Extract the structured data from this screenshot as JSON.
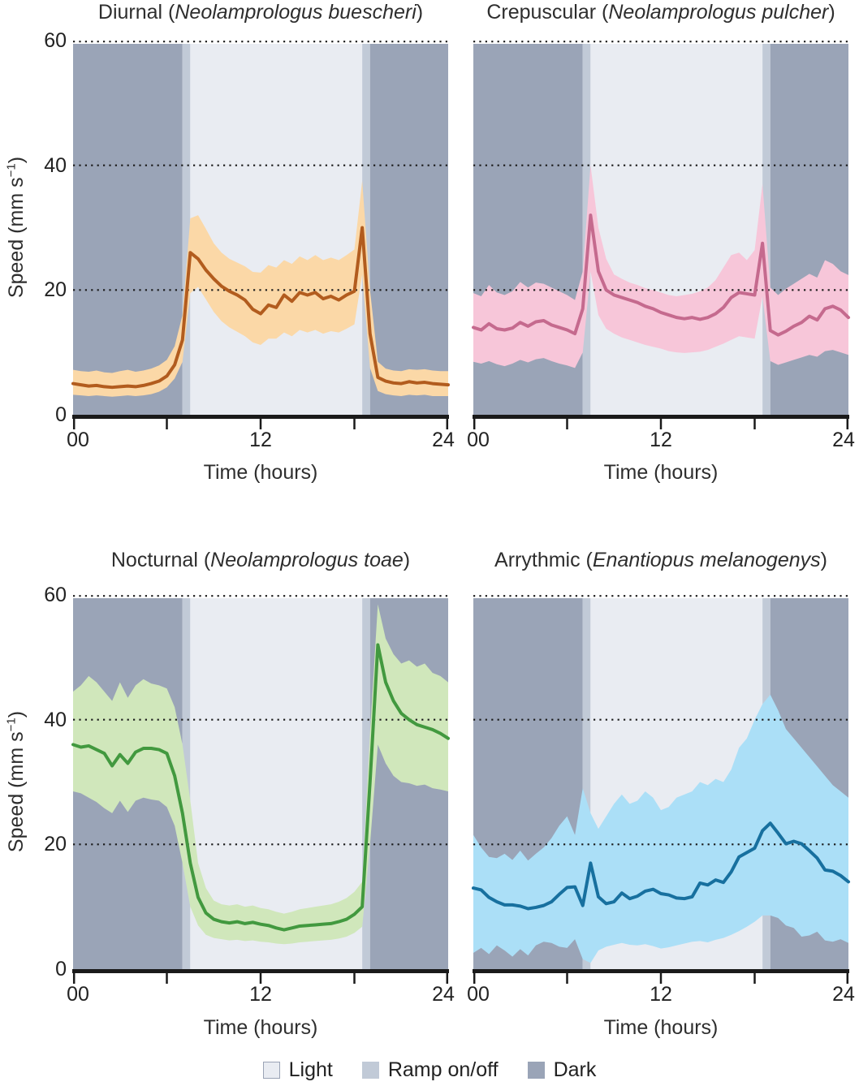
{
  "colors": {
    "dark": "#9aa4b7",
    "ramp": "#c1cad7",
    "light": "#e9ecf2",
    "axis": "#1a1a1a",
    "grid": "#1a1a1a",
    "text": "#2e2e2e"
  },
  "axes": {
    "y_label_prefix": "Speed (mm s",
    "y_label_sup": "−1",
    "y_label_suffix": ")",
    "x_label": "Time (hours)",
    "y_tick_labels": [
      "60",
      "40",
      "20",
      "0"
    ],
    "x_tick_labels": [
      "00",
      "12",
      "24"
    ]
  },
  "legend": {
    "items": [
      {
        "label": "Light",
        "swatch_color": "#e9ecf2",
        "swatch_border": "#9aa3b5"
      },
      {
        "label": "Ramp on/off",
        "swatch_color": "#c1cad7",
        "swatch_border": ""
      },
      {
        "label": "Dark",
        "swatch_color": "#9aa4b7",
        "swatch_border": ""
      }
    ]
  },
  "chart_data": {
    "type": "line",
    "x_range": [
      0,
      24
    ],
    "y_range": [
      0,
      60
    ],
    "x_ticks_hours": [
      0,
      6,
      12,
      18,
      24
    ],
    "x_tick_labels": [
      "00",
      "12",
      "24"
    ],
    "grid_values": [
      20,
      40,
      60
    ],
    "light_schedule": {
      "ramp_on": [
        7.0,
        7.5
      ],
      "ramp_off": [
        18.5,
        19.0
      ]
    },
    "x_hours": [
      0,
      0.5,
      1,
      1.5,
      2,
      2.5,
      3,
      3.5,
      4,
      4.5,
      5,
      5.5,
      6,
      6.5,
      7,
      7.5,
      8,
      8.5,
      9,
      9.5,
      10,
      10.5,
      11,
      11.5,
      12,
      12.5,
      13,
      13.5,
      14,
      14.5,
      15,
      15.5,
      16,
      16.5,
      17,
      17.5,
      18,
      18.5,
      19,
      19.5,
      20,
      20.5,
      21,
      21.5,
      22,
      22.5,
      23,
      23.5,
      24
    ],
    "panels": [
      {
        "title_prefix": "Diurnal (",
        "species": "Neolamprologus buescheri",
        "title_suffix": ")",
        "line_color": "#b25c1e",
        "band_color": "#fbd8a7",
        "mean": [
          5.0,
          4.8,
          4.6,
          4.7,
          4.5,
          4.4,
          4.5,
          4.6,
          4.5,
          4.7,
          5.0,
          5.4,
          6.2,
          8.0,
          12.0,
          26.0,
          25.0,
          23.2,
          21.8,
          20.6,
          19.8,
          19.2,
          18.4,
          16.9,
          16.2,
          17.6,
          17.2,
          19.2,
          18.2,
          19.6,
          19.2,
          19.6,
          18.6,
          19.0,
          18.4,
          19.2,
          19.8,
          30.0,
          13.0,
          6.0,
          5.4,
          5.1,
          5.0,
          5.3,
          5.1,
          5.2,
          5.0,
          4.9,
          4.8
        ],
        "upper": [
          7.2,
          7.0,
          6.9,
          7.1,
          6.8,
          6.7,
          7.0,
          7.2,
          6.9,
          7.1,
          7.4,
          7.9,
          8.8,
          11.0,
          16.0,
          31.5,
          32.0,
          29.8,
          27.5,
          26.0,
          25.0,
          24.4,
          23.8,
          22.9,
          22.8,
          24.0,
          23.6,
          24.8,
          24.2,
          25.4,
          24.8,
          25.6,
          24.8,
          25.2,
          24.8,
          25.6,
          26.5,
          37.5,
          20.0,
          8.5,
          7.4,
          7.1,
          7.0,
          7.3,
          7.2,
          7.3,
          7.1,
          7.0,
          7.0
        ],
        "lower": [
          3.2,
          3.1,
          3.0,
          3.1,
          3.0,
          2.9,
          3.0,
          3.1,
          3.0,
          3.1,
          3.3,
          3.7,
          4.4,
          5.8,
          8.5,
          19.5,
          20.5,
          18.5,
          16.5,
          15.0,
          14.0,
          13.3,
          12.6,
          11.6,
          11.2,
          12.2,
          12.2,
          13.2,
          12.6,
          13.6,
          13.2,
          13.6,
          13.0,
          13.4,
          13.2,
          13.8,
          14.5,
          22.5,
          7.5,
          3.8,
          3.3,
          3.1,
          3.0,
          3.2,
          3.1,
          3.2,
          3.0,
          3.0,
          3.0
        ]
      },
      {
        "title_prefix": "Crepuscular (",
        "species": "Neolamprologus pulcher",
        "title_suffix": ")",
        "line_color": "#c56a8e",
        "band_color": "#f7c6d9",
        "mean": [
          14.0,
          13.6,
          14.6,
          13.8,
          13.6,
          13.9,
          14.8,
          14.2,
          14.9,
          15.1,
          14.4,
          14.0,
          13.6,
          13.0,
          17.0,
          32.0,
          23.0,
          20.0,
          19.2,
          18.8,
          18.4,
          18.0,
          17.4,
          17.0,
          16.4,
          16.0,
          15.6,
          15.4,
          15.6,
          15.3,
          15.6,
          16.2,
          17.2,
          18.8,
          19.6,
          19.4,
          19.2,
          27.5,
          13.5,
          12.8,
          13.4,
          14.2,
          14.8,
          15.8,
          15.2,
          17.0,
          17.4,
          16.8,
          15.6
        ],
        "upper": [
          19.5,
          19.0,
          20.8,
          19.6,
          19.2,
          19.8,
          21.3,
          20.4,
          21.2,
          21.0,
          20.4,
          19.8,
          19.2,
          18.4,
          23.0,
          40.0,
          30.0,
          25.0,
          22.5,
          21.8,
          21.2,
          20.8,
          20.3,
          20.0,
          19.6,
          19.2,
          19.0,
          19.2,
          19.4,
          19.8,
          20.4,
          21.6,
          23.6,
          25.6,
          26.0,
          24.8,
          26.4,
          37.0,
          20.4,
          19.2,
          20.2,
          21.0,
          21.8,
          22.6,
          22.0,
          24.8,
          24.2,
          23.0,
          22.4
        ],
        "lower": [
          8.5,
          8.2,
          8.6,
          8.1,
          7.8,
          8.2,
          8.8,
          8.4,
          8.9,
          9.1,
          8.6,
          8.2,
          7.9,
          7.5,
          10.0,
          23.0,
          16.0,
          13.8,
          13.0,
          12.4,
          12.0,
          11.6,
          11.2,
          10.9,
          10.6,
          10.2,
          10.0,
          9.9,
          10.0,
          10.1,
          10.4,
          10.9,
          11.4,
          12.0,
          12.6,
          12.4,
          12.2,
          19.0,
          8.6,
          8.0,
          8.4,
          8.8,
          9.2,
          9.6,
          9.3,
          10.2,
          10.4,
          10.0,
          9.6
        ]
      },
      {
        "title_prefix": "Nocturnal (",
        "species": "Neolamprologus toae",
        "title_suffix": ")",
        "line_color": "#42993f",
        "band_color": "#d0e7bb",
        "mean": [
          36.0,
          35.6,
          35.8,
          35.2,
          34.6,
          32.6,
          34.4,
          33.0,
          34.8,
          35.4,
          35.4,
          35.2,
          34.6,
          31.0,
          25.0,
          17.0,
          11.5,
          9.0,
          8.0,
          7.6,
          7.4,
          7.6,
          7.3,
          7.5,
          7.2,
          7.0,
          6.6,
          6.3,
          6.6,
          6.9,
          7.0,
          7.1,
          7.2,
          7.3,
          7.6,
          8.0,
          8.8,
          10.0,
          30.0,
          52.0,
          46.0,
          43.0,
          41.0,
          40.0,
          39.2,
          38.8,
          38.4,
          37.8,
          37.0
        ],
        "upper": [
          44.5,
          45.5,
          47.0,
          46.0,
          44.5,
          43.0,
          46.0,
          43.5,
          45.5,
          46.5,
          45.8,
          45.5,
          45.0,
          42.0,
          36.0,
          27.0,
          17.0,
          13.0,
          11.0,
          10.4,
          10.2,
          10.4,
          10.0,
          10.2,
          9.8,
          9.6,
          9.2,
          8.9,
          9.2,
          9.6,
          9.8,
          10.0,
          10.2,
          10.4,
          10.8,
          11.4,
          12.4,
          14.0,
          38.0,
          58.5,
          53.0,
          50.5,
          49.0,
          49.5,
          48.5,
          49.0,
          47.5,
          47.0,
          46.0
        ],
        "lower": [
          28.5,
          28.2,
          27.5,
          26.8,
          25.8,
          25.0,
          27.0,
          25.2,
          27.0,
          27.5,
          27.2,
          27.0,
          26.0,
          23.0,
          17.0,
          10.0,
          7.0,
          5.5,
          5.0,
          4.8,
          4.6,
          4.7,
          4.5,
          4.6,
          4.4,
          4.3,
          4.1,
          4.0,
          4.1,
          4.3,
          4.4,
          4.5,
          4.6,
          4.7,
          4.9,
          5.2,
          5.8,
          6.8,
          20.0,
          36.0,
          33.0,
          31.0,
          30.0,
          29.8,
          29.4,
          29.6,
          29.0,
          28.8,
          28.5
        ]
      },
      {
        "title_prefix": "Arrythmic (",
        "species": "Enantiopus melanogenys",
        "title_suffix": ")",
        "line_color": "#17709f",
        "band_color": "#abdff7",
        "mean": [
          13.0,
          12.7,
          11.5,
          10.8,
          10.3,
          10.3,
          10.1,
          9.7,
          9.9,
          10.2,
          10.8,
          12.0,
          13.1,
          13.2,
          10.2,
          17.0,
          11.6,
          10.5,
          10.8,
          12.2,
          11.3,
          11.7,
          12.5,
          12.8,
          12.1,
          11.9,
          11.4,
          11.3,
          11.6,
          13.8,
          13.5,
          14.3,
          13.9,
          15.6,
          18.0,
          18.7,
          19.4,
          22.2,
          23.4,
          21.8,
          20.1,
          20.5,
          20.1,
          19.0,
          17.8,
          15.9,
          15.7,
          15.0,
          14.0
        ],
        "upper": [
          21.5,
          19.5,
          18.0,
          17.8,
          18.5,
          17.5,
          19.0,
          17.4,
          18.5,
          19.5,
          21.0,
          23.0,
          24.5,
          21.5,
          29.0,
          25.0,
          22.5,
          24.5,
          26.5,
          28.0,
          26.5,
          27.0,
          28.5,
          27.5,
          25.5,
          26.0,
          27.5,
          28.0,
          28.5,
          30.0,
          29.5,
          30.5,
          30.0,
          32.0,
          35.5,
          37.0,
          40.0,
          42.5,
          44.0,
          41.5,
          38.5,
          37.0,
          35.5,
          34.0,
          32.5,
          31.0,
          29.5,
          28.5,
          27.5
        ],
        "lower": [
          2.6,
          3.4,
          2.4,
          3.8,
          3.0,
          2.0,
          3.2,
          2.2,
          3.8,
          4.4,
          4.2,
          3.6,
          3.4,
          4.8,
          1.6,
          1.0,
          3.0,
          3.6,
          3.9,
          4.2,
          3.9,
          3.8,
          4.0,
          3.7,
          3.3,
          3.5,
          3.8,
          4.1,
          4.4,
          4.5,
          4.3,
          4.7,
          5.0,
          5.5,
          6.1,
          6.8,
          7.6,
          8.6,
          8.6,
          8.2,
          7.0,
          6.6,
          5.2,
          5.4,
          6.0,
          4.6,
          4.4,
          4.8,
          4.2
        ]
      }
    ]
  }
}
